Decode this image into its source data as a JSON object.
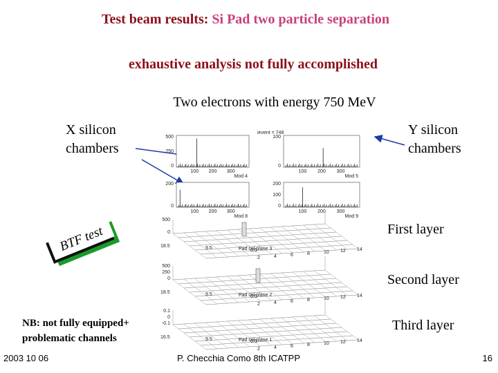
{
  "header": {
    "title_lead": "Test beam results:",
    "title_rest": "Si Pad two particle separation",
    "subtitle": "exhaustive analysis not fully accomplished"
  },
  "event_caption": "Two electrons with energy 750 MeV",
  "labels": {
    "x_chambers": [
      "X silicon",
      "chambers"
    ],
    "y_chambers": [
      "Y silicon",
      "chambers"
    ],
    "btf": "BTF test",
    "first_layer": "First layer",
    "second_layer": "Second layer",
    "third_layer": "Third layer",
    "note": [
      "NB: not fully equipped+",
      "problematic channels"
    ]
  },
  "event_label": "ievent = 748",
  "histograms": [
    {
      "title": "Mod 4",
      "y_labels": [
        "500",
        "250",
        "0"
      ],
      "x_labels": [
        "100",
        "200",
        "300"
      ]
    },
    {
      "title": "Mod 5",
      "y_labels": [
        "100",
        "0"
      ],
      "x_labels": [
        "100",
        "200",
        "300"
      ]
    },
    {
      "title": "Mod 8",
      "y_labels": [
        "200",
        "0"
      ],
      "x_labels": [
        "100",
        "200",
        "300"
      ]
    },
    {
      "title": "Mod 9",
      "y_labels": [
        "200",
        "100",
        "0"
      ],
      "x_labels": [
        "100",
        "200",
        "300"
      ]
    }
  ],
  "lego_plots": [
    {
      "title": "Pad col plane 3",
      "z_labels": [
        "500",
        "0"
      ],
      "row_labels": [
        "18.5",
        "9.5",
        "0.5"
      ],
      "col_labels": [
        "2",
        "4",
        "6",
        "8",
        "10",
        "12",
        "14"
      ]
    },
    {
      "title": "Pad col plane 2",
      "z_labels": [
        "500",
        "250",
        "0"
      ],
      "row_labels": [
        "18.5",
        "9.5",
        "0.5"
      ],
      "col_labels": [
        "2",
        "4",
        "6",
        "8",
        "10",
        "12",
        "14"
      ]
    },
    {
      "title": "Pad col plane 1",
      "z_labels": [
        "0.1",
        "0",
        "-0.1"
      ],
      "row_labels": [
        "16.5",
        "9.5",
        "0.5"
      ],
      "col_labels": [
        "2",
        "4",
        "6",
        "8",
        "10",
        "12",
        "14"
      ]
    }
  ],
  "footer": {
    "date": "2003 10 06",
    "author": "P. Checchia  Como  8th ICATPP",
    "page": "16"
  }
}
